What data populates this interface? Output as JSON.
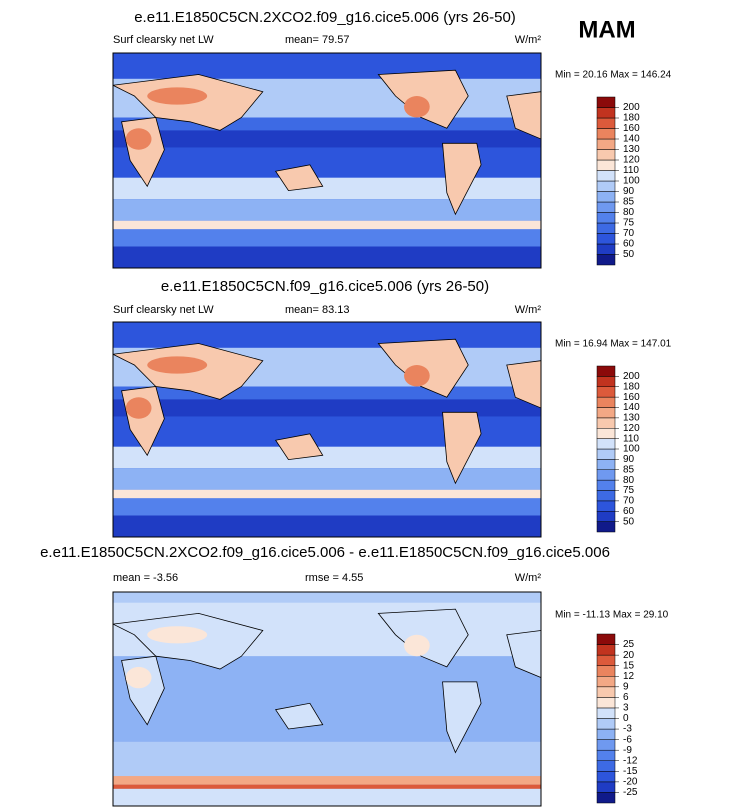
{
  "season": "MAM",
  "panels": [
    {
      "title": "e.e11.E1850C5CN.2XCO2.f09_g16.cice5.006 (yrs 26-50)",
      "left": "Surf clearsky net LW",
      "center": "mean=  79.57",
      "units": "W/m²",
      "minmax": "Min = 20.16 Max = 146.24",
      "colorbar": {
        "levels": [
          50,
          60,
          70,
          75,
          80,
          85,
          90,
          100,
          110,
          120,
          130,
          140,
          160,
          180,
          200
        ],
        "colors": [
          "#101a8a",
          "#1f3cc4",
          "#2d55dc",
          "#3d6ae4",
          "#5381ec",
          "#6f99f0",
          "#8db2f4",
          "#b0cbf7",
          "#d2e2fa",
          "#fbe6d8",
          "#f8c9ae",
          "#f3a885",
          "#ea845e",
          "#dc5a3b",
          "#c1331f",
          "#8b0a0a"
        ]
      }
    },
    {
      "title": "e.e11.E1850C5CN.f09_g16.cice5.006 (yrs 26-50)",
      "left": "Surf clearsky net LW",
      "center": "mean=  83.13",
      "units": "W/m²",
      "minmax": "Min = 16.94 Max = 147.01",
      "colorbar": {
        "levels": [
          50,
          60,
          70,
          75,
          80,
          85,
          90,
          100,
          110,
          120,
          130,
          140,
          160,
          180,
          200
        ],
        "colors": [
          "#101a8a",
          "#1f3cc4",
          "#2d55dc",
          "#3d6ae4",
          "#5381ec",
          "#6f99f0",
          "#8db2f4",
          "#b0cbf7",
          "#d2e2fa",
          "#fbe6d8",
          "#f8c9ae",
          "#f3a885",
          "#ea845e",
          "#dc5a3b",
          "#c1331f",
          "#8b0a0a"
        ]
      }
    },
    {
      "title": "e.e11.E1850C5CN.2XCO2.f09_g16.cice5.006 - e.e11.E1850C5CN.f09_g16.cice5.006",
      "left": "mean =  -3.56",
      "center": "rmse =  4.55",
      "units": "W/m²",
      "minmax": "Min = -11.13 Max =  29.10",
      "colorbar": {
        "levels": [
          -25,
          -20,
          -15,
          -12,
          -9,
          -6,
          -3,
          0,
          3,
          6,
          9,
          12,
          15,
          20,
          25
        ],
        "colors": [
          "#101a8a",
          "#1f3cc4",
          "#2d55dc",
          "#3d6ae4",
          "#5381ec",
          "#6f99f0",
          "#8db2f4",
          "#b0cbf7",
          "#d2e2fa",
          "#fbe6d8",
          "#f8c9ae",
          "#f3a885",
          "#ea845e",
          "#dc5a3b",
          "#c1331f",
          "#8b0a0a"
        ]
      }
    }
  ]
}
